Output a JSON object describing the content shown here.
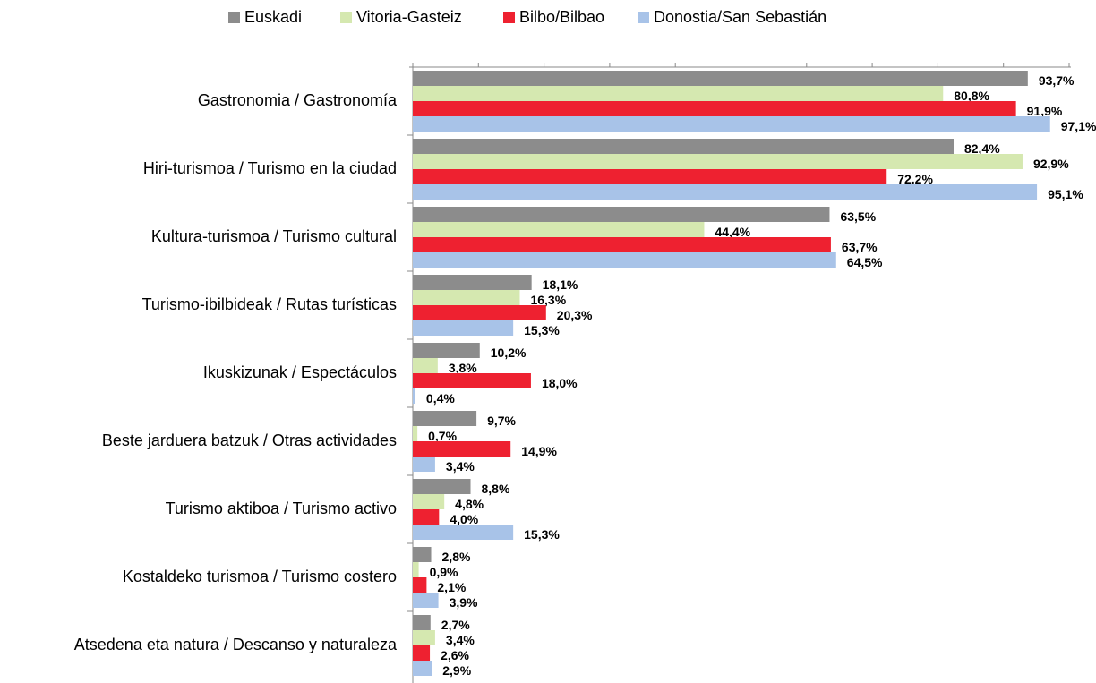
{
  "chart_data": {
    "type": "hbar",
    "categories": [
      "Gastronomia / Gastronomía",
      "Hiri-turismoa / Turismo en la ciudad",
      "Kultura-turismoa / Turismo cultural",
      "Turismo-ibilbideak / Rutas turísticas",
      "Ikuskizunak / Espectáculos",
      "Beste jarduera batzuk / Otras actividades",
      "Turismo aktiboa / Turismo activo",
      "Kostaldeko turismoa / Turismo costero",
      "Atsedena eta natura / Descanso y naturaleza"
    ],
    "series": [
      {
        "name": "Euskadi",
        "color": "#8c8c8c",
        "values": [
          93.7,
          82.4,
          63.5,
          18.1,
          10.2,
          9.7,
          8.8,
          2.8,
          2.7
        ],
        "value_labels": [
          "93,7%",
          "82,4%",
          "63,5%",
          "18,1%",
          "10,2%",
          "9,7%",
          "8,8%",
          "2,8%",
          "2,7%"
        ]
      },
      {
        "name": "Vitoria-Gasteiz",
        "color": "#d5e8b0",
        "values": [
          80.8,
          92.9,
          44.4,
          16.3,
          3.8,
          0.7,
          4.8,
          0.9,
          3.4
        ],
        "value_labels": [
          "80,8%",
          "92,9%",
          "44,4%",
          "16,3%",
          "3,8%",
          "0,7%",
          "4,8%",
          "0,9%",
          "3,4%"
        ]
      },
      {
        "name": "Bilbo/Bilbao",
        "color": "#ee2130",
        "values": [
          91.9,
          72.2,
          63.7,
          20.3,
          18.0,
          14.9,
          4.0,
          2.1,
          2.6
        ],
        "value_labels": [
          "91,9%",
          "72,2%",
          "63,7%",
          "20,3%",
          "18,0%",
          "14,9%",
          "4,0%",
          "2,1%",
          "2,6%"
        ]
      },
      {
        "name": "Donostia/San Sebastián",
        "color": "#a8c3e8",
        "values": [
          97.1,
          95.1,
          64.5,
          15.3,
          0.4,
          3.4,
          15.3,
          3.9,
          2.9
        ],
        "value_labels": [
          "97,1%",
          "95,1%",
          "64,5%",
          "15,3%",
          "0,4%",
          "3,4%",
          "15,3%",
          "3,9%",
          "2,9%"
        ]
      }
    ],
    "xlim": [
      0,
      100
    ],
    "xticks": [
      0,
      10,
      20,
      30,
      40,
      50,
      60,
      70,
      80,
      90,
      100
    ],
    "legend": "top"
  }
}
